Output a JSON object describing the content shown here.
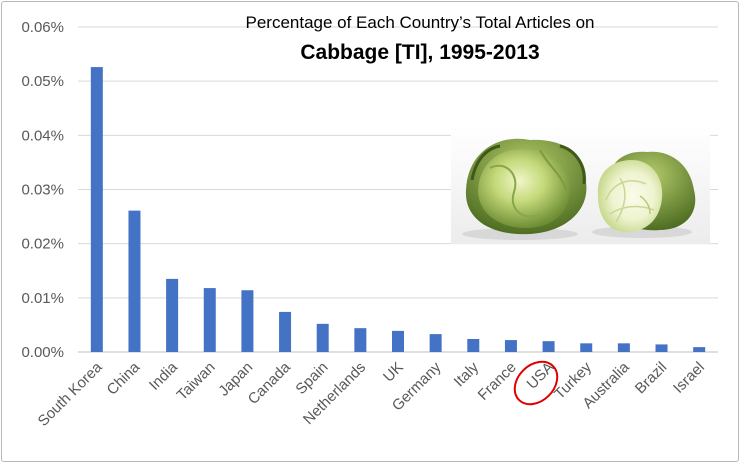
{
  "chart_data": {
    "type": "bar",
    "title_line1": "Percentage of Each Country’s Total Articles on",
    "title_line2": "Cabbage [TI], 1995-2013",
    "xlabel": "",
    "ylabel": "",
    "ylim": [
      0,
      0.06
    ],
    "y_ticks": [
      "0.00%",
      "0.01%",
      "0.02%",
      "0.03%",
      "0.04%",
      "0.05%",
      "0.06%"
    ],
    "grid": true,
    "categories": [
      "South Korea",
      "China",
      "India",
      "Taiwan",
      "Japan",
      "Canada",
      "Spain",
      "Netherlands",
      "UK",
      "Germany",
      "Italy",
      "France",
      "USA",
      "Turkey",
      "Australia",
      "Brazil",
      "Israel"
    ],
    "values": [
      0.0526,
      0.0261,
      0.0135,
      0.0118,
      0.0114,
      0.0074,
      0.0052,
      0.0044,
      0.0039,
      0.0033,
      0.0024,
      0.0022,
      0.002,
      0.0016,
      0.0016,
      0.0014,
      0.0009
    ],
    "bar_color": "#4472c4",
    "highlight": {
      "category": "USA",
      "style": "red circle",
      "color": "#e00000"
    },
    "image": {
      "subject": "cabbage-photo"
    }
  }
}
